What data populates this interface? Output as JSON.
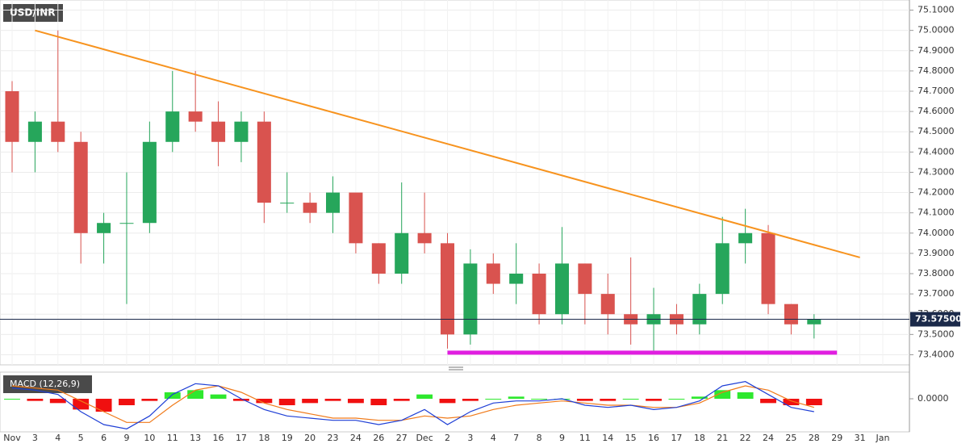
{
  "chart_data": [
    {
      "type": "candlestick",
      "title": "USD/INR",
      "categories": [
        "Nov",
        "3",
        "4",
        "5",
        "6",
        "9",
        "10",
        "11",
        "13",
        "16",
        "17",
        "18",
        "19",
        "20",
        "23",
        "24",
        "26",
        "27",
        "Dec",
        "2",
        "3",
        "4",
        "7",
        "8",
        "9",
        "11",
        "14",
        "15",
        "16",
        "17",
        "18",
        "21",
        "22",
        "24",
        "25",
        "28",
        "29",
        "31",
        "Jan"
      ],
      "open": [
        74.7,
        74.45,
        74.55,
        74.45,
        74.0,
        74.05,
        74.05,
        74.45,
        74.6,
        74.55,
        74.45,
        74.55,
        74.15,
        74.15,
        74.1,
        74.2,
        73.95,
        73.8,
        74.0,
        73.95,
        73.5,
        73.85,
        73.75,
        73.8,
        73.6,
        73.85,
        73.7,
        73.6,
        73.55,
        73.6,
        73.55,
        73.7,
        73.95,
        74.0,
        73.65,
        73.55,
        null,
        null,
        null
      ],
      "high": [
        74.75,
        74.6,
        75.0,
        74.5,
        74.1,
        74.3,
        74.55,
        74.8,
        74.8,
        74.65,
        74.6,
        74.6,
        74.3,
        74.2,
        74.28,
        74.2,
        73.95,
        74.25,
        74.2,
        74.0,
        73.92,
        73.9,
        73.95,
        73.85,
        74.03,
        73.85,
        73.8,
        73.88,
        73.73,
        73.65,
        73.75,
        74.08,
        74.12,
        74.04,
        73.65,
        73.6,
        null,
        null,
        null
      ],
      "low": [
        74.3,
        74.3,
        74.4,
        73.85,
        73.85,
        73.65,
        74.0,
        74.4,
        74.5,
        74.33,
        74.35,
        74.05,
        74.1,
        74.05,
        74.0,
        73.9,
        73.75,
        73.75,
        73.9,
        73.43,
        73.45,
        73.7,
        73.65,
        73.55,
        73.55,
        73.55,
        73.5,
        73.45,
        73.42,
        73.5,
        73.5,
        73.65,
        73.85,
        73.6,
        73.5,
        73.48,
        null,
        null,
        null
      ],
      "close": [
        74.45,
        74.55,
        74.45,
        74.0,
        74.05,
        74.05,
        74.45,
        74.6,
        74.55,
        74.45,
        74.55,
        74.15,
        74.15,
        74.1,
        74.2,
        73.95,
        73.8,
        74.0,
        73.95,
        73.5,
        73.85,
        73.75,
        73.8,
        73.6,
        73.85,
        73.7,
        73.6,
        73.55,
        73.6,
        73.55,
        73.7,
        73.95,
        74.0,
        73.65,
        73.55,
        73.575,
        null,
        null,
        null
      ],
      "up_color": "#26a65b",
      "down_color": "#d9534f",
      "ylim": [
        73.35,
        75.15
      ],
      "yticks": [
        {
          "value": 73.4,
          "label": "73.4000"
        },
        {
          "value": 73.5,
          "label": "73.5000"
        },
        {
          "value": 73.6,
          "label": "73.6000"
        },
        {
          "value": 73.7,
          "label": "73.7000"
        },
        {
          "value": 73.8,
          "label": "73.8000"
        },
        {
          "value": 73.9,
          "label": "73.9000"
        },
        {
          "value": 74.0,
          "label": "74.0000"
        },
        {
          "value": 74.1,
          "label": "74.1000"
        },
        {
          "value": 74.2,
          "label": "74.2000"
        },
        {
          "value": 74.3,
          "label": "74.3000"
        },
        {
          "value": 74.4,
          "label": "74.4000"
        },
        {
          "value": 74.5,
          "label": "74.5000"
        },
        {
          "value": 74.6,
          "label": "74.6000"
        },
        {
          "value": 74.7,
          "label": "74.7000"
        },
        {
          "value": 74.8,
          "label": "74.8000"
        },
        {
          "value": 74.9,
          "label": "74.9000"
        },
        {
          "value": 75.0,
          "label": "75.0000"
        },
        {
          "value": 75.1,
          "label": "75.1000"
        }
      ],
      "grid": true,
      "last_value": 73.575,
      "last_value_label": "73.57500",
      "lines": [
        {
          "x": [
            "3",
            "31"
          ],
          "values": [
            75.0,
            73.88
          ],
          "color": "#f7931e"
        },
        {
          "x": [
            "2",
            "29"
          ],
          "values": [
            73.41,
            73.41
          ],
          "color": "#e01ee0"
        }
      ]
    },
    {
      "type": "macd",
      "title": "MACD (12,26,9)",
      "hist": [
        0.0,
        -0.01,
        -0.02,
        -0.05,
        -0.06,
        -0.03,
        -0.01,
        0.03,
        0.04,
        0.02,
        -0.01,
        -0.02,
        -0.03,
        -0.02,
        -0.01,
        -0.02,
        -0.03,
        -0.01,
        0.02,
        -0.02,
        -0.01,
        0.0,
        0.01,
        0.0,
        0.0,
        -0.01,
        -0.01,
        0.0,
        -0.01,
        0.0,
        0.01,
        0.04,
        0.03,
        -0.02,
        -0.03,
        -0.03,
        null,
        null,
        null
      ],
      "macd": [
        0.05,
        0.04,
        0.02,
        -0.06,
        -0.12,
        -0.14,
        -0.08,
        0.02,
        0.07,
        0.06,
        0.0,
        -0.05,
        -0.08,
        -0.09,
        -0.1,
        -0.1,
        -0.12,
        -0.1,
        -0.05,
        -0.12,
        -0.06,
        -0.02,
        -0.01,
        -0.01,
        0.0,
        -0.03,
        -0.04,
        -0.03,
        -0.05,
        -0.04,
        -0.01,
        0.06,
        0.08,
        0.02,
        -0.04,
        -0.06,
        null,
        null,
        null
      ],
      "signal": [
        0.06,
        0.05,
        0.04,
        -0.01,
        -0.06,
        -0.11,
        -0.11,
        -0.03,
        0.04,
        0.06,
        0.03,
        -0.02,
        -0.05,
        -0.07,
        -0.09,
        -0.09,
        -0.1,
        -0.1,
        -0.08,
        -0.09,
        -0.08,
        -0.05,
        -0.03,
        -0.02,
        -0.01,
        -0.02,
        -0.03,
        -0.03,
        -0.04,
        -0.04,
        -0.02,
        0.03,
        0.06,
        0.04,
        -0.01,
        -0.04,
        null,
        null,
        null
      ],
      "macd_color": "#1f3fd6",
      "signal_color": "#f07a1a",
      "up_color": "#2ee82e",
      "down_color": "#f01010",
      "ylim": [
        -0.15,
        0.12
      ],
      "yticks": [
        {
          "value": 0,
          "label": "0.0000"
        }
      ]
    }
  ]
}
